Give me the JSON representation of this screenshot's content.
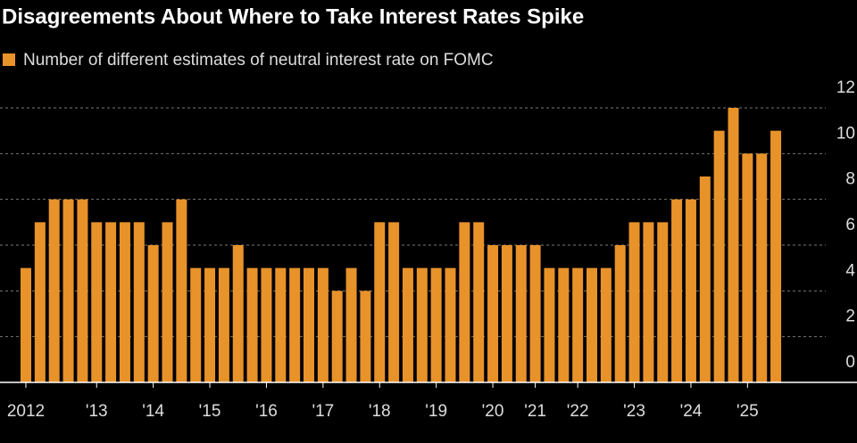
{
  "chart_data": {
    "type": "bar",
    "title": "Disagreements About Where to Take Interest Rates Spike",
    "series": [
      {
        "name": "Number of different estimates of neutral interest rate on FOMC",
        "color": "#e8922a",
        "values": [
          5,
          7,
          8,
          8,
          8,
          7,
          7,
          7,
          7,
          6,
          7,
          8,
          5,
          5,
          5,
          6,
          5,
          5,
          5,
          5,
          5,
          5,
          4,
          5,
          4,
          7,
          7,
          5,
          5,
          5,
          5,
          7,
          7,
          6,
          6,
          6,
          6,
          5,
          5,
          5,
          5,
          5,
          6,
          7,
          7,
          7,
          8,
          8,
          9,
          11,
          12,
          10,
          10,
          11
        ]
      }
    ],
    "categories": [
      "2012",
      null,
      null,
      null,
      null,
      "'13",
      null,
      null,
      null,
      "'14",
      null,
      null,
      null,
      "'15",
      null,
      null,
      null,
      "'16",
      null,
      null,
      null,
      "'17",
      null,
      null,
      null,
      "'18",
      null,
      null,
      null,
      "'19",
      null,
      null,
      null,
      "'20",
      null,
      null,
      "'21",
      null,
      null,
      "'22",
      null,
      null,
      null,
      "'23",
      null,
      null,
      null,
      "'24",
      null,
      null,
      null,
      "'25",
      null,
      null
    ],
    "ylim": [
      0,
      12
    ],
    "yticks": [
      0,
      2,
      4,
      6,
      8,
      10,
      12
    ],
    "grid": true,
    "legend": "top-left"
  }
}
